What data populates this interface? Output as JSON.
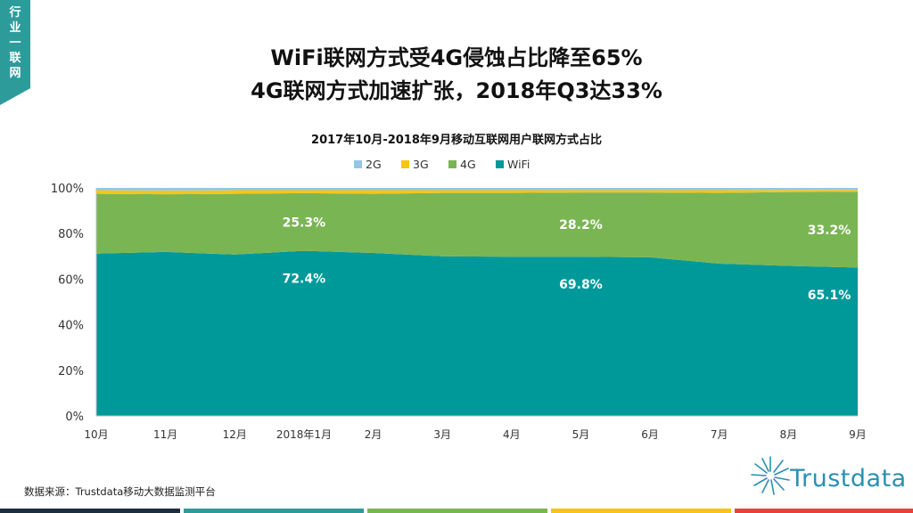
{
  "corner_tag": {
    "chars": [
      "行",
      "业",
      "一",
      "联",
      "网"
    ]
  },
  "headline": {
    "line1": "WiFi联网方式受4G侵蚀占比降至65%",
    "line2": "4G联网方式加速扩张，2018年Q3达33%"
  },
  "source": "数据来源：Trustdata移动大数据监测平台",
  "logo": {
    "text": "Trustdata",
    "icon": "starburst-icon"
  },
  "chart_data": {
    "type": "area",
    "stacked": true,
    "title": "2017年10月-2018年9月移动互联网用户联网方式占比",
    "categories": [
      "10月",
      "11月",
      "12月",
      "2018年1月",
      "2月",
      "3月",
      "4月",
      "5月",
      "6月",
      "7月",
      "8月",
      "9月"
    ],
    "ylim": [
      0,
      100
    ],
    "yticks": [
      "0%",
      "20%",
      "40%",
      "60%",
      "80%",
      "100%"
    ],
    "legend_position": "top",
    "series": [
      {
        "name": "WiFi",
        "color": "#00999a",
        "values": [
          71.2,
          71.9,
          70.8,
          72.4,
          71.5,
          70.0,
          69.8,
          69.8,
          69.6,
          66.8,
          65.8,
          65.1
        ]
      },
      {
        "name": "4G",
        "color": "#7ab554",
        "values": [
          26.2,
          25.3,
          26.6,
          25.3,
          25.9,
          27.8,
          28.0,
          28.2,
          28.4,
          31.0,
          32.4,
          33.2
        ]
      },
      {
        "name": "3G",
        "color": "#f5c518",
        "values": [
          1.6,
          1.7,
          1.6,
          1.3,
          1.6,
          1.2,
          1.2,
          1.0,
          1.0,
          1.2,
          0.9,
          0.8
        ]
      },
      {
        "name": "2G",
        "color": "#8fc8e6",
        "values": [
          1.0,
          1.1,
          1.0,
          1.0,
          1.0,
          1.0,
          1.0,
          1.0,
          1.0,
          1.0,
          0.9,
          0.9
        ]
      }
    ],
    "legend_order": [
      "2G",
      "3G",
      "4G",
      "WiFi"
    ],
    "data_labels": [
      {
        "series": "4G",
        "index": 3,
        "text": "25.3%"
      },
      {
        "series": "4G",
        "index": 7,
        "text": "28.2%"
      },
      {
        "series": "4G",
        "index": 11,
        "text": "33.2%"
      },
      {
        "series": "WiFi",
        "index": 3,
        "text": "72.4%"
      },
      {
        "series": "WiFi",
        "index": 7,
        "text": "69.8%"
      },
      {
        "series": "WiFi",
        "index": 11,
        "text": "65.1%"
      }
    ]
  }
}
